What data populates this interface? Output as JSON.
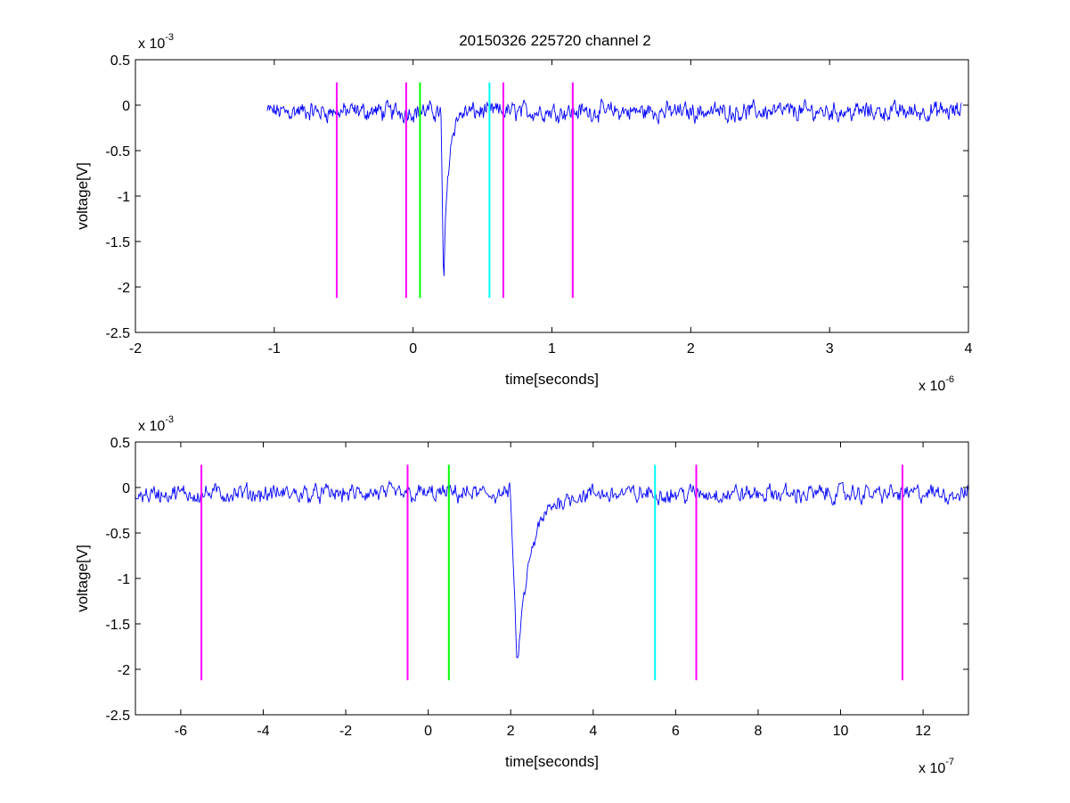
{
  "title": "20150326 225720 channel 2",
  "chart_data": [
    {
      "type": "line",
      "title": "20150326 225720 channel 2",
      "xlabel": "time[seconds]",
      "ylabel": "voltage[V]",
      "x_unit_exponent": -6,
      "y_unit_exponent": -3,
      "x_multiplier": {
        "base": "x 10",
        "exp": "-6"
      },
      "y_multiplier": {
        "base": "x 10",
        "exp": "-3"
      },
      "xlim": [
        -2,
        4
      ],
      "ylim": [
        -2.5,
        0.5
      ],
      "xticks": [
        -2,
        -1,
        0,
        1,
        2,
        3,
        4
      ],
      "yticks": [
        -2.5,
        -2,
        -1.5,
        -1,
        -0.5,
        0,
        0.5
      ],
      "xtick_labels": [
        "-2",
        "-1",
        "0",
        "1",
        "2",
        "3",
        "4"
      ],
      "ytick_labels": [
        "-2.5",
        "-2",
        "-1.5",
        "-1",
        "-0.5",
        "0",
        "0.5"
      ],
      "grid": false,
      "series": [
        {
          "color": "#0000ff",
          "x_range": [
            -1.05,
            3.95
          ],
          "baseline": -0.07,
          "noise_amplitude": 0.13,
          "pulse": {
            "start": 0.2,
            "minimum_time": 0.22,
            "minimum_value": -1.93,
            "recovery_to": 0.32
          }
        }
      ],
      "markers": [
        {
          "x": -0.55,
          "color": "#ff00ff",
          "y_range": [
            -2.12,
            0.25
          ]
        },
        {
          "x": -0.05,
          "color": "#ff00ff",
          "y_range": [
            -2.12,
            0.25
          ]
        },
        {
          "x": 0.05,
          "color": "#00ff00",
          "y_range": [
            -2.12,
            0.25
          ]
        },
        {
          "x": 0.55,
          "color": "#00ffff",
          "y_range": [
            -2.12,
            0.25
          ]
        },
        {
          "x": 0.65,
          "color": "#ff00ff",
          "y_range": [
            -2.12,
            0.25
          ]
        },
        {
          "x": 1.15,
          "color": "#ff00ff",
          "y_range": [
            -2.12,
            0.25
          ]
        }
      ]
    },
    {
      "type": "line",
      "title": "",
      "xlabel": "time[seconds]",
      "ylabel": "voltage[V]",
      "x_unit_exponent": -7,
      "y_unit_exponent": -3,
      "x_multiplier": {
        "base": "x 10",
        "exp": "-7"
      },
      "y_multiplier": {
        "base": "x 10",
        "exp": "-3"
      },
      "xlim": [
        -7.1,
        13.1
      ],
      "ylim": [
        -2.5,
        0.5
      ],
      "xticks": [
        -6,
        -4,
        -2,
        0,
        2,
        4,
        6,
        8,
        10,
        12
      ],
      "yticks": [
        -2.5,
        -2,
        -1.5,
        -1,
        -0.5,
        0,
        0.5
      ],
      "xtick_labels": [
        "-6",
        "-4",
        "-2",
        "0",
        "2",
        "4",
        "6",
        "8",
        "10",
        "12"
      ],
      "ytick_labels": [
        "-2.5",
        "-2",
        "-1.5",
        "-1",
        "-0.5",
        "0",
        "0.5"
      ],
      "grid": false,
      "series": [
        {
          "color": "#0000ff",
          "x_range": [
            -7.1,
            13.1
          ],
          "baseline": -0.07,
          "noise_amplitude": 0.13,
          "pulse": {
            "start": 2.0,
            "minimum_time": 2.15,
            "minimum_value": -1.93,
            "recovery_to": 3.2
          }
        }
      ],
      "markers": [
        {
          "x": -5.5,
          "color": "#ff00ff",
          "y_range": [
            -2.12,
            0.25
          ]
        },
        {
          "x": -0.5,
          "color": "#ff00ff",
          "y_range": [
            -2.12,
            0.25
          ]
        },
        {
          "x": 0.5,
          "color": "#00ff00",
          "y_range": [
            -2.12,
            0.25
          ]
        },
        {
          "x": 5.5,
          "color": "#00ffff",
          "y_range": [
            -2.12,
            0.25
          ]
        },
        {
          "x": 6.5,
          "color": "#ff00ff",
          "y_range": [
            -2.12,
            0.25
          ]
        },
        {
          "x": 11.5,
          "color": "#ff00ff",
          "y_range": [
            -2.12,
            0.25
          ]
        }
      ]
    }
  ]
}
